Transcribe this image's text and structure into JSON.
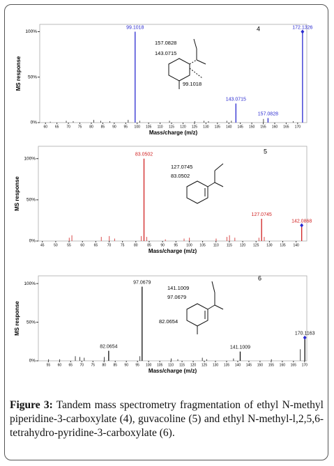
{
  "chart_data": [
    {
      "type": "bar",
      "label": "4",
      "x_label": "Mass/charge (m/z)",
      "y_label": "MS response",
      "xlim": [
        57.5,
        174
      ],
      "ylim": [
        0,
        108
      ],
      "xticks": [
        60,
        65,
        70,
        75,
        80,
        85,
        90,
        95,
        100,
        105,
        110,
        115,
        120,
        125,
        130,
        135,
        140,
        145,
        150,
        155,
        160,
        165,
        170
      ],
      "yticks": [
        {
          "value": 0,
          "label": "0%"
        },
        {
          "value": 50,
          "label": "50%"
        },
        {
          "value": 100,
          "label": "100%"
        }
      ],
      "annotations": [
        "157.0828",
        "143.0715",
        "99.1018"
      ],
      "series": [
        {
          "color": "#2a2ad0",
          "labeled": true,
          "x": [
            99.1018,
            143.0715,
            157.0828,
            172.1326
          ],
          "values": [
            100,
            21,
            5,
            100
          ]
        },
        {
          "color": "#222222",
          "x": [
            62.1,
            69.07,
            72.1,
            81.07,
            84.08,
            88.1,
            96.08,
            101.1,
            114.09,
            125.09,
            129.1,
            131.1,
            139.1,
            141.1,
            155.1,
            168.1
          ],
          "values": [
            1,
            2,
            1.5,
            3,
            2,
            1.5,
            3,
            2,
            2,
            1.5,
            2,
            1.5,
            2,
            2,
            4,
            1.5
          ]
        }
      ]
    },
    {
      "type": "bar",
      "label": "5",
      "x_label": "Mass/charge (m/z)",
      "y_label": "MS response",
      "xlim": [
        43.5,
        144
      ],
      "ylim": [
        0,
        115
      ],
      "xticks": [
        45,
        50,
        55,
        60,
        65,
        70,
        75,
        80,
        85,
        90,
        95,
        100,
        105,
        110,
        115,
        120,
        125,
        130,
        135,
        140
      ],
      "yticks": [
        {
          "value": 0,
          "label": "0%"
        },
        {
          "value": 50,
          "label": "50%"
        },
        {
          "value": 100,
          "label": "100%"
        }
      ],
      "annotations": [
        "127.0745",
        "83.0502"
      ],
      "series": [
        {
          "color": "#d02020",
          "labeled": true,
          "x": [
            83.0502,
            127.0745,
            142.0868
          ],
          "values": [
            100,
            27,
            19
          ]
        },
        {
          "color": "#d02020",
          "x": [
            55.05,
            56.05,
            67.05,
            70.07,
            72.04,
            82.04,
            84.05,
            91.05,
            98.06,
            100.07,
            110.06,
            114.07,
            115.05,
            117.07,
            126.06,
            128.07
          ],
          "values": [
            4,
            7,
            5,
            6,
            3,
            6,
            5,
            2,
            3,
            4,
            3,
            5,
            7,
            4,
            4,
            5
          ]
        }
      ]
    },
    {
      "type": "bar",
      "label": "6",
      "x_label": "Mass/charge (m/z)",
      "y_label": "MS response",
      "xlim": [
        50.5,
        171
      ],
      "ylim": [
        0,
        110
      ],
      "xticks": [
        55,
        60,
        65,
        70,
        75,
        80,
        85,
        90,
        95,
        100,
        105,
        110,
        115,
        120,
        125,
        130,
        135,
        140,
        145,
        150,
        155,
        160,
        165,
        170
      ],
      "yticks": [
        {
          "value": 0,
          "label": "0%"
        },
        {
          "value": 50,
          "label": "50%"
        },
        {
          "value": 100,
          "label": "100%"
        }
      ],
      "annotations": [
        "141.1009",
        "97.0679",
        "82.0654"
      ],
      "series": [
        {
          "color": "#111111",
          "labeled": true,
          "x": [
            82.0654,
            97.0679,
            141.1009,
            170.1163
          ],
          "values": [
            13,
            96,
            12,
            30
          ]
        },
        {
          "color": "#111111",
          "x": [
            55.1,
            60.1,
            67.1,
            69.1,
            71.1,
            80.1,
            96.1,
            110.1,
            113.1,
            124.1,
            126.1,
            138.1,
            155.1,
            168.1
          ],
          "values": [
            2,
            2,
            6,
            5,
            4,
            5,
            6,
            3,
            2,
            4,
            2,
            3,
            2,
            15
          ]
        }
      ]
    }
  ],
  "caption": {
    "label": "Figure 3:",
    "text": "Tandem mass spectrometry fragmentation of ethyl N-methyl piperidine-3-carboxylate (4), guvacoline (5) and ethyl N-methyl-l,2,5,6-tetrahydro-pyridine-3-carboxylate (6)."
  }
}
